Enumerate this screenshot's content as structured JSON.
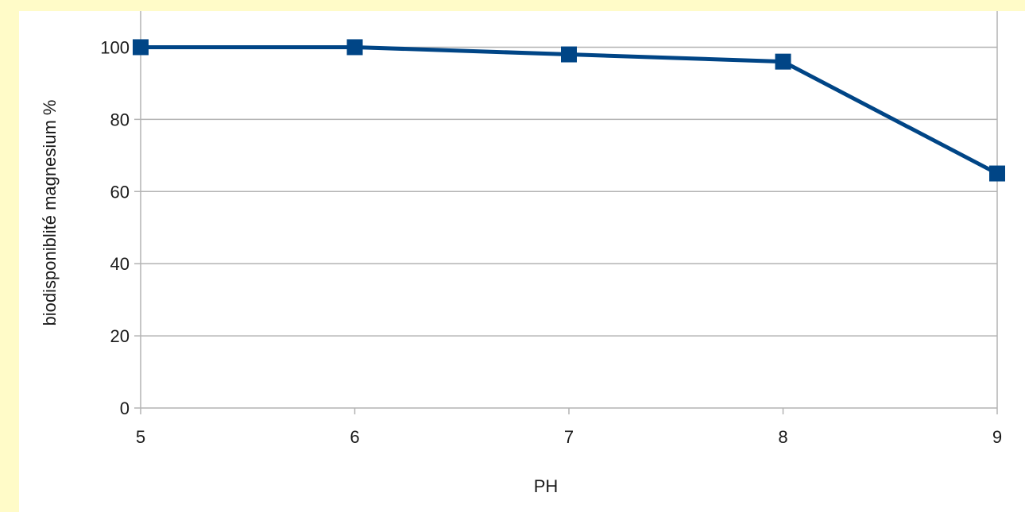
{
  "colors": {
    "page_background": "#fffbc8",
    "plot_background": "#ffffff",
    "series": "#004586",
    "grid": "#b3b3b3"
  },
  "chart_data": {
    "type": "line",
    "title": "",
    "xlabel": "PH",
    "ylabel": "biodisponiblité magnesium %",
    "x": [
      5,
      6,
      7,
      8,
      9
    ],
    "xticks": [
      "5",
      "6",
      "7",
      "8",
      "9"
    ],
    "yticks": [
      "0",
      "20",
      "40",
      "60",
      "80",
      "100"
    ],
    "xlim": [
      5,
      9
    ],
    "ylim": [
      0,
      110
    ],
    "grid": "horizontal",
    "legend": "none",
    "marker": "square",
    "series": [
      {
        "values": [
          100,
          100,
          98,
          96,
          65
        ]
      }
    ]
  }
}
